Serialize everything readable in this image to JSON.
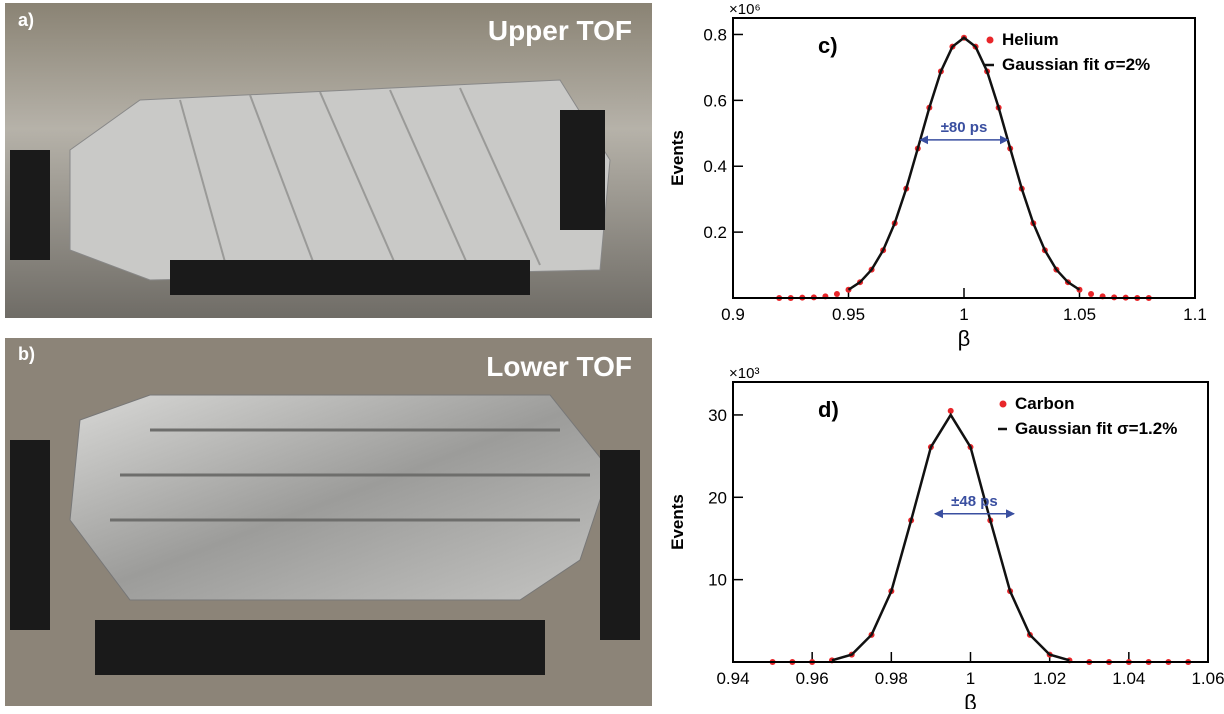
{
  "photos": [
    {
      "label": "a)",
      "caption": "Upper TOF"
    },
    {
      "label": "b)",
      "caption": "Lower TOF"
    }
  ],
  "chart_data": [
    {
      "type": "scatter",
      "panel": "c)",
      "y_multiplier": "×10⁶",
      "xlabel": "β",
      "ylabel": "Events",
      "xlim": [
        0.9,
        1.1
      ],
      "xticks": [
        0.9,
        0.95,
        1,
        1.05,
        1.1
      ],
      "ylim": [
        0,
        0.85
      ],
      "yticks": [
        0.2,
        0.4,
        0.6,
        0.8
      ],
      "x": [
        0.92,
        0.925,
        0.93,
        0.935,
        0.94,
        0.945,
        0.95,
        0.955,
        0.96,
        0.965,
        0.97,
        0.975,
        0.98,
        0.985,
        0.99,
        0.995,
        1,
        1.005,
        1.01,
        1.015,
        1.02,
        1.025,
        1.03,
        1.035,
        1.04,
        1.045,
        1.05,
        1.055,
        1.06,
        1.065,
        1.07,
        1.075,
        1.08
      ],
      "series": [
        {
          "name": "Helium",
          "color": "#e8262a",
          "style": "points",
          "values": [
            0,
            0,
            0.001,
            0.002,
            0.005,
            0.012,
            0.025,
            0.048,
            0.086,
            0.145,
            0.227,
            0.332,
            0.454,
            0.578,
            0.688,
            0.763,
            0.79,
            0.763,
            0.688,
            0.578,
            0.454,
            0.332,
            0.227,
            0.145,
            0.086,
            0.048,
            0.025,
            0.012,
            0.005,
            0.002,
            0.001,
            0,
            0
          ]
        },
        {
          "name": "Gaussian fit σ=2%",
          "color": "#111111",
          "style": "line",
          "values": [
            null,
            null,
            null,
            null,
            null,
            null,
            0.025,
            0.048,
            0.086,
            0.145,
            0.227,
            0.332,
            0.454,
            0.578,
            0.688,
            0.763,
            0.79,
            0.763,
            0.688,
            0.578,
            0.454,
            0.332,
            0.227,
            0.145,
            0.086,
            0.048,
            0.025,
            null,
            null,
            null,
            null,
            null,
            null
          ]
        }
      ],
      "annotation": {
        "text": "±80 ps",
        "color": "#3a4fa0",
        "x": [
          0.981,
          1.019
        ],
        "y": 0.48
      }
    },
    {
      "type": "scatter",
      "panel": "d)",
      "y_multiplier": "×10³",
      "xlabel": "β",
      "ylabel": "Events",
      "xlim": [
        0.94,
        1.06
      ],
      "xticks": [
        0.94,
        0.96,
        0.98,
        1,
        1.02,
        1.04,
        1.06
      ],
      "ylim": [
        0,
        34
      ],
      "yticks": [
        10,
        20,
        30
      ],
      "x": [
        0.95,
        0.955,
        0.96,
        0.965,
        0.97,
        0.975,
        0.98,
        0.985,
        0.99,
        0.995,
        1,
        1.005,
        1.01,
        1.015,
        1.02,
        1.025,
        1.03,
        1.035,
        1.04,
        1.045,
        1.05,
        1.055
      ],
      "series": [
        {
          "name": "Carbon",
          "color": "#e8262a",
          "style": "points",
          "values": [
            0,
            0,
            0,
            0.2,
            0.9,
            3.3,
            8.6,
            17.2,
            26.1,
            30.5,
            26.1,
            17.2,
            8.6,
            3.3,
            0.9,
            0.2,
            0,
            0,
            0,
            0,
            0,
            0
          ]
        },
        {
          "name": "Gaussian fit σ=1.2%",
          "color": "#111111",
          "style": "line",
          "values": [
            null,
            null,
            null,
            0.2,
            0.9,
            3.3,
            8.6,
            17.2,
            26.1,
            30,
            26.1,
            17.2,
            8.6,
            3.3,
            0.9,
            0.2,
            null,
            null,
            null,
            null,
            null,
            null
          ]
        }
      ],
      "annotation": {
        "text": "±48 ps",
        "color": "#3a4fa0",
        "x": [
          0.991,
          1.011
        ],
        "y": 18
      }
    }
  ]
}
